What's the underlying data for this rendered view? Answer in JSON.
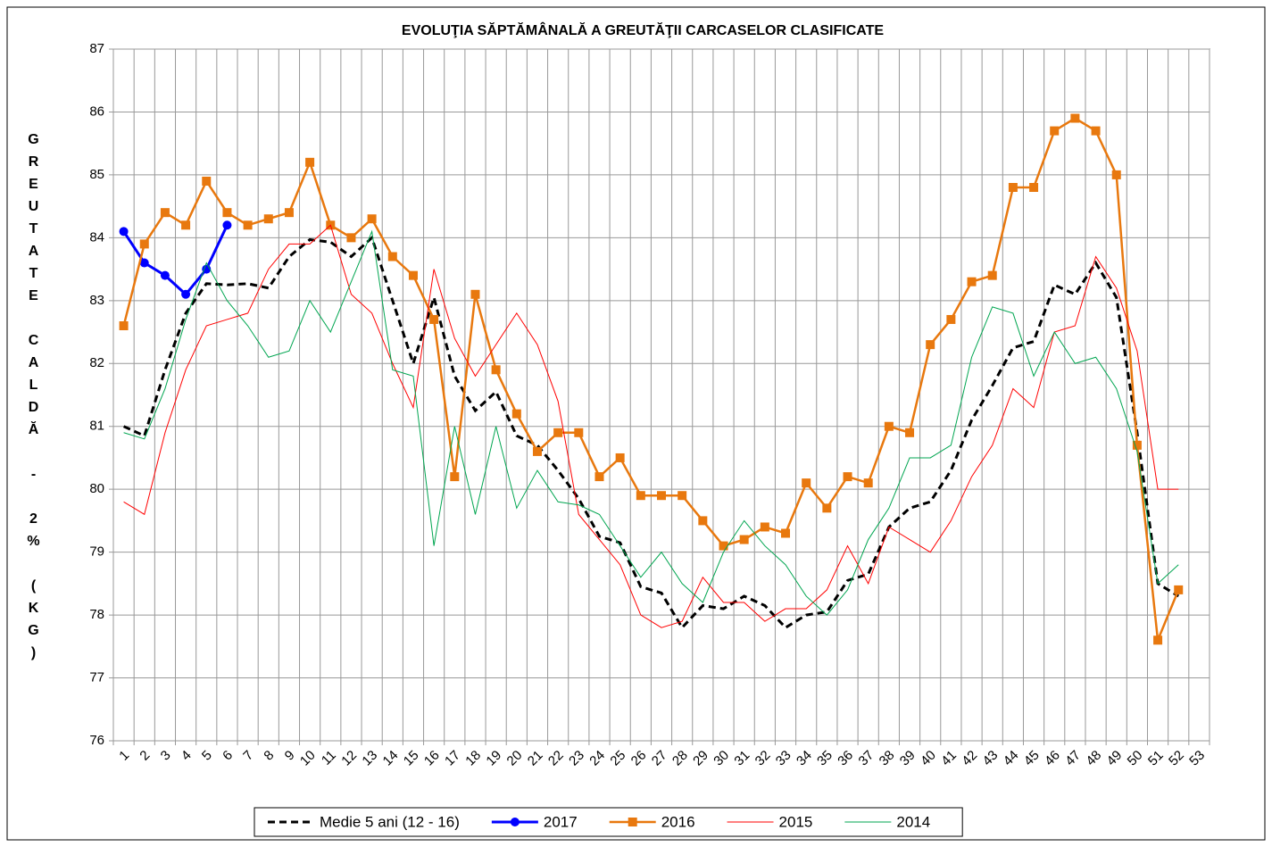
{
  "chart_data": {
    "type": "line",
    "title": "EVOLUŢIA SĂPTĂMÂNALĂ A GREUTĂŢII CARCASELOR CLASIFICATE",
    "y_label": "GREUTATE CALDĂ - 2% (KG)",
    "categories": [
      "1",
      "2",
      "3",
      "4",
      "5",
      "6",
      "7",
      "8",
      "9",
      "10",
      "11",
      "12",
      "13",
      "14",
      "15",
      "16",
      "17",
      "18",
      "19",
      "20",
      "21",
      "22",
      "23",
      "24",
      "25",
      "26",
      "27",
      "28",
      "29",
      "30",
      "31",
      "32",
      "33",
      "34",
      "35",
      "36",
      "37",
      "38",
      "39",
      "40",
      "41",
      "42",
      "43",
      "44",
      "45",
      "46",
      "47",
      "48",
      "49",
      "50",
      "51",
      "52",
      "53"
    ],
    "ylim": [
      76,
      87
    ],
    "yticks": [
      76,
      77,
      78,
      79,
      80,
      81,
      82,
      83,
      84,
      85,
      86,
      87
    ],
    "grid": true,
    "legend": "bottom",
    "series": [
      {
        "name": "Medie 5 ani (12 - 16)",
        "color": "#000000",
        "dashed": true,
        "width": 3,
        "marker": null,
        "values": [
          81.0,
          80.85,
          81.9,
          82.8,
          83.27,
          83.25,
          83.27,
          83.2,
          83.7,
          83.97,
          83.93,
          83.7,
          84.0,
          83.0,
          82.0,
          83.05,
          81.8,
          81.25,
          81.55,
          80.85,
          80.7,
          80.3,
          79.85,
          79.25,
          79.15,
          78.45,
          78.35,
          77.8,
          78.15,
          78.1,
          78.3,
          78.15,
          77.8,
          78.0,
          78.05,
          78.55,
          78.65,
          79.4,
          79.7,
          79.8,
          80.3,
          81.1,
          81.65,
          82.25,
          82.35,
          83.25,
          83.1,
          83.6,
          83.05,
          80.9,
          78.5,
          78.3,
          null
        ]
      },
      {
        "name": "2017",
        "color": "#0000ff",
        "dashed": false,
        "width": 3,
        "marker": "circle",
        "values": [
          84.1,
          83.6,
          83.4,
          83.1,
          83.5,
          84.2,
          null,
          null,
          null,
          null,
          null,
          null,
          null,
          null,
          null,
          null,
          null,
          null,
          null,
          null,
          null,
          null,
          null,
          null,
          null,
          null,
          null,
          null,
          null,
          null,
          null,
          null,
          null,
          null,
          null,
          null,
          null,
          null,
          null,
          null,
          null,
          null,
          null,
          null,
          null,
          null,
          null,
          null,
          null,
          null,
          null,
          null,
          null
        ]
      },
      {
        "name": "2016",
        "color": "#e8780e",
        "dashed": false,
        "width": 2.5,
        "marker": "square",
        "values": [
          82.6,
          83.9,
          84.4,
          84.2,
          84.9,
          84.4,
          84.2,
          84.3,
          84.4,
          85.2,
          84.2,
          84.0,
          84.3,
          83.7,
          83.4,
          82.7,
          80.2,
          83.1,
          81.9,
          81.2,
          80.6,
          80.9,
          80.9,
          80.2,
          80.5,
          79.9,
          79.9,
          79.9,
          79.5,
          79.1,
          79.2,
          79.4,
          79.3,
          80.1,
          79.7,
          80.2,
          80.1,
          81.0,
          80.9,
          82.3,
          82.7,
          83.3,
          83.4,
          84.8,
          84.8,
          85.7,
          85.9,
          85.7,
          85.0,
          80.7,
          77.6,
          78.4,
          null
        ]
      },
      {
        "name": "2015",
        "color": "#ff0000",
        "dashed": false,
        "width": 1,
        "marker": null,
        "values": [
          79.8,
          79.6,
          80.9,
          81.9,
          82.6,
          82.7,
          82.8,
          83.5,
          83.9,
          83.9,
          84.2,
          83.1,
          82.8,
          82.0,
          81.3,
          83.5,
          82.4,
          81.8,
          82.3,
          82.8,
          82.3,
          81.4,
          79.6,
          79.2,
          78.8,
          78.0,
          77.8,
          77.9,
          78.6,
          78.2,
          78.2,
          77.9,
          78.1,
          78.1,
          78.4,
          79.1,
          78.5,
          79.4,
          79.2,
          79.0,
          79.5,
          80.2,
          80.7,
          81.6,
          81.3,
          82.5,
          82.6,
          83.7,
          83.2,
          82.2,
          80.0,
          80.0,
          null
        ]
      },
      {
        "name": "2014",
        "color": "#00a550",
        "dashed": false,
        "width": 1,
        "marker": null,
        "values": [
          80.9,
          80.8,
          81.6,
          82.7,
          83.6,
          83.0,
          82.6,
          82.1,
          82.2,
          83.0,
          82.5,
          83.3,
          84.1,
          81.9,
          81.8,
          79.1,
          81.0,
          79.6,
          81.0,
          79.7,
          80.3,
          79.8,
          79.75,
          79.6,
          79.1,
          78.6,
          79.0,
          78.5,
          78.2,
          79.0,
          79.5,
          79.1,
          78.8,
          78.3,
          78.0,
          78.4,
          79.2,
          79.7,
          80.5,
          80.5,
          80.7,
          82.1,
          82.9,
          82.8,
          81.8,
          82.5,
          82.0,
          82.1,
          81.6,
          80.6,
          78.5,
          78.8,
          null
        ]
      }
    ]
  }
}
